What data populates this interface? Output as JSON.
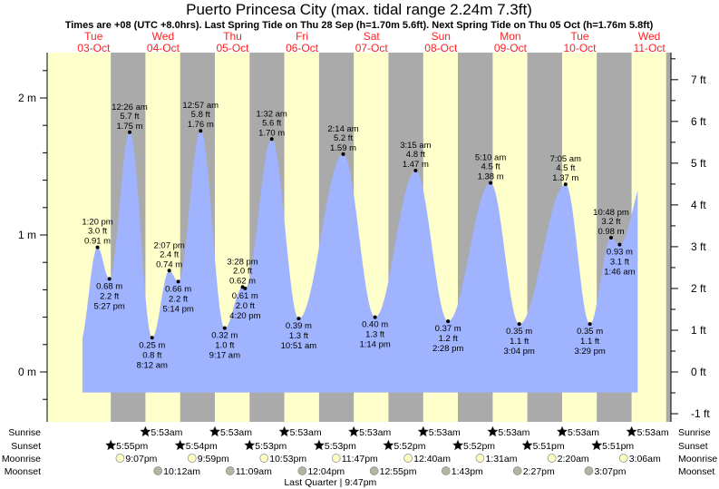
{
  "title": "Puerto Princesa City (max. tidal range 2.24m 7.3ft)",
  "subtitle": "Times are +08 (UTC +8.0hrs). Last Spring Tide on Thu 28 Sep (h=1.70m 5.6ft). Next Spring Tide on Thu 05 Oct (h=1.76m 5.8ft)",
  "colors": {
    "day": "#ffffcc",
    "night": "#aaaaaa",
    "water": "#9fb3ff",
    "dayLabel": "#ff2020",
    "sunrise": "#b8b030",
    "sunset": "#d43c1c",
    "moonrise": "#ffffc4",
    "moonset": "#b4b4a0"
  },
  "days": [
    {
      "dow": "Tue",
      "date": "03-Oct"
    },
    {
      "dow": "Wed",
      "date": "04-Oct"
    },
    {
      "dow": "Thu",
      "date": "05-Oct"
    },
    {
      "dow": "Fri",
      "date": "06-Oct"
    },
    {
      "dow": "Sat",
      "date": "07-Oct"
    },
    {
      "dow": "Sun",
      "date": "08-Oct"
    },
    {
      "dow": "Mon",
      "date": "09-Oct"
    },
    {
      "dow": "Tue",
      "date": "10-Oct"
    },
    {
      "dow": "Wed",
      "date": "11-Oct"
    }
  ],
  "chart_data": {
    "type": "area",
    "title": "Puerto Princesa City (max. tidal range 2.24m 7.3ft)",
    "left_axis": {
      "unit": "m",
      "ticks": [
        "0 m",
        "1 m",
        "2 m"
      ],
      "values": [
        0,
        1,
        2
      ]
    },
    "right_axis": {
      "unit": "ft",
      "ticks": [
        "-1 ft",
        "0 ft",
        "1 ft",
        "2 ft",
        "3 ft",
        "4 ft",
        "5 ft",
        "6 ft",
        "7 ft"
      ],
      "values": [
        -1,
        0,
        1,
        2,
        3,
        4,
        5,
        6,
        7
      ]
    },
    "ylim_m": [
      -0.36,
      2.33
    ],
    "curve_start": {
      "d": 0,
      "t": "8:06 am",
      "m": 0.23
    },
    "curve_end": {
      "d": 8,
      "t": "8:00 am",
      "m": 1.39
    },
    "extremes": [
      {
        "d": 0,
        "t": "1:20 pm",
        "m": 0.91,
        "m_label": "0.91 m",
        "ft_label": "3.0 ft",
        "type": "high"
      },
      {
        "d": 0,
        "t": "5:27 pm",
        "m": 0.68,
        "m_label": "0.68 m",
        "ft_label": "2.2 ft",
        "type": "low"
      },
      {
        "d": 1,
        "t": "12:26 am",
        "m": 1.75,
        "m_label": "1.75 m",
        "ft_label": "5.7 ft",
        "type": "high"
      },
      {
        "d": 1,
        "t": "8:12 am",
        "m": 0.25,
        "m_label": "0.25 m",
        "ft_label": "0.8 ft",
        "type": "low"
      },
      {
        "d": 1,
        "t": "2:07 pm",
        "m": 0.74,
        "m_label": "0.74 m",
        "ft_label": "2.4 ft",
        "type": "high"
      },
      {
        "d": 1,
        "t": "5:14 pm",
        "m": 0.66,
        "m_label": "0.66 m",
        "ft_label": "2.2 ft",
        "type": "low"
      },
      {
        "d": 2,
        "t": "12:57 am",
        "m": 1.76,
        "m_label": "1.76 m",
        "ft_label": "5.8 ft",
        "type": "high"
      },
      {
        "d": 2,
        "t": "9:17 am",
        "m": 0.32,
        "m_label": "0.32 m",
        "ft_label": "1.0 ft",
        "type": "low"
      },
      {
        "d": 2,
        "t": "3:28 pm",
        "m": 0.62,
        "m_label": "0.62 m",
        "ft_label": "2.0 ft",
        "type": "high"
      },
      {
        "d": 2,
        "t": "4:20 pm",
        "m": 0.61,
        "m_label": "0.61 m",
        "ft_label": "2.0 ft",
        "type": "low"
      },
      {
        "d": 3,
        "t": "1:32 am",
        "m": 1.7,
        "m_label": "1.70 m",
        "ft_label": "5.6 ft",
        "type": "high"
      },
      {
        "d": 3,
        "t": "10:51 am",
        "m": 0.39,
        "m_label": "0.39 m",
        "ft_label": "1.3 ft",
        "type": "low"
      },
      {
        "d": 4,
        "t": "2:14 am",
        "m": 1.59,
        "m_label": "1.59 m",
        "ft_label": "5.2 ft",
        "type": "high"
      },
      {
        "d": 4,
        "t": "1:14 pm",
        "m": 0.4,
        "m_label": "0.40 m",
        "ft_label": "1.3 ft",
        "type": "low"
      },
      {
        "d": 5,
        "t": "3:15 am",
        "m": 1.47,
        "m_label": "1.47 m",
        "ft_label": "4.8 ft",
        "type": "high"
      },
      {
        "d": 5,
        "t": "2:28 pm",
        "m": 0.37,
        "m_label": "0.37 m",
        "ft_label": "1.2 ft",
        "type": "low"
      },
      {
        "d": 6,
        "t": "5:10 am",
        "m": 1.38,
        "m_label": "1.38 m",
        "ft_label": "4.5 ft",
        "type": "high"
      },
      {
        "d": 6,
        "t": "3:04 pm",
        "m": 0.35,
        "m_label": "0.35 m",
        "ft_label": "1.1 ft",
        "type": "low"
      },
      {
        "d": 7,
        "t": "7:05 am",
        "m": 1.37,
        "m_label": "1.37 m",
        "ft_label": "4.5 ft",
        "type": "high"
      },
      {
        "d": 7,
        "t": "3:29 pm",
        "m": 0.35,
        "m_label": "0.35 m",
        "ft_label": "1.1 ft",
        "type": "low"
      },
      {
        "d": 7,
        "t": "10:48 pm",
        "m": 0.98,
        "m_label": "0.98 m",
        "ft_label": "3.2 ft",
        "type": "high"
      },
      {
        "d": 8,
        "t": "1:46 am",
        "m": 0.93,
        "m_label": "0.93 m",
        "ft_label": "3.1 ft",
        "type": "low"
      }
    ]
  },
  "rows": {
    "sunrise": {
      "label": "Sunrise",
      "items": [
        {
          "d": 1,
          "t": "5:53am"
        },
        {
          "d": 2,
          "t": "5:53am"
        },
        {
          "d": 3,
          "t": "5:53am"
        },
        {
          "d": 4,
          "t": "5:53am"
        },
        {
          "d": 5,
          "t": "5:53am"
        },
        {
          "d": 6,
          "t": "5:53am"
        },
        {
          "d": 7,
          "t": "5:53am"
        },
        {
          "d": 8,
          "t": "5:53am"
        }
      ]
    },
    "sunset": {
      "label": "Sunset",
      "items": [
        {
          "d": 0,
          "t": "5:55pm"
        },
        {
          "d": 1,
          "t": "5:54pm"
        },
        {
          "d": 2,
          "t": "5:53pm"
        },
        {
          "d": 3,
          "t": "5:53pm"
        },
        {
          "d": 4,
          "t": "5:52pm"
        },
        {
          "d": 5,
          "t": "5:52pm"
        },
        {
          "d": 6,
          "t": "5:51pm"
        },
        {
          "d": 7,
          "t": "5:51pm"
        }
      ]
    },
    "moonrise": {
      "label": "Moonrise",
      "items": [
        {
          "d": 0,
          "t": "9:07pm"
        },
        {
          "d": 1,
          "t": "9:59pm"
        },
        {
          "d": 2,
          "t": "10:53pm"
        },
        {
          "d": 3,
          "t": "11:47pm"
        },
        {
          "d": 5,
          "t": "12:40am"
        },
        {
          "d": 6,
          "t": "1:31am"
        },
        {
          "d": 7,
          "t": "2:20am"
        },
        {
          "d": 8,
          "t": "3:06am"
        }
      ]
    },
    "moonset": {
      "label": "Moonset",
      "items": [
        {
          "d": 1,
          "t": "10:12am"
        },
        {
          "d": 2,
          "t": "11:09am"
        },
        {
          "d": 3,
          "t": "12:04pm"
        },
        {
          "d": 4,
          "t": "12:55pm"
        },
        {
          "d": 5,
          "t": "1:43pm"
        },
        {
          "d": 6,
          "t": "2:27pm"
        },
        {
          "d": 7,
          "t": "3:07pm"
        }
      ]
    }
  },
  "moon_phase": {
    "d": 3,
    "t": "9:47pm",
    "text": "Last Quarter | 9:47pm"
  },
  "night_after_last": {
    "d": 8,
    "t": "5:51pm"
  }
}
